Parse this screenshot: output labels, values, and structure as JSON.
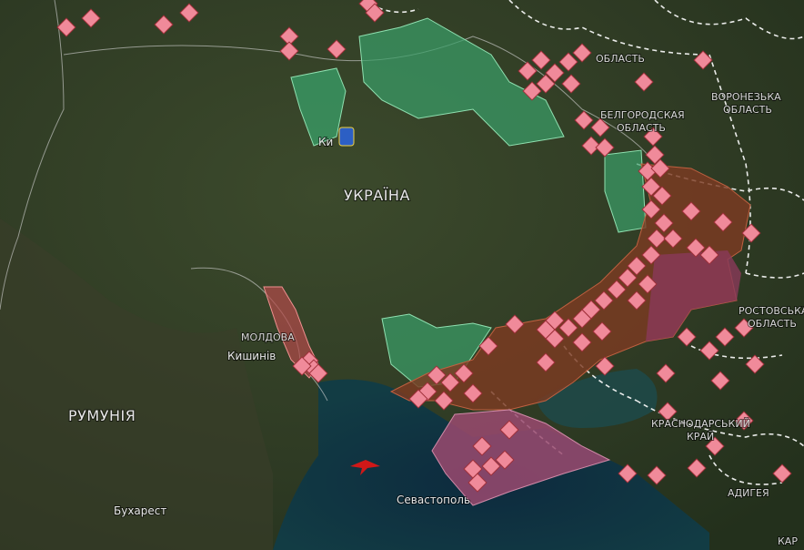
{
  "map": {
    "labels": {
      "ukraine": "УКРАЇНА",
      "kyiv": "Ки",
      "moldova": "МОЛДОВА",
      "chisinau": "Кишинів",
      "romania": "РУМУНІЯ",
      "bucharest": "Бухарест",
      "sevastopol": "Севастополь",
      "kursk": [
        "ОБЛАСТЬ"
      ],
      "belgorod": [
        "БЕЛГОРОДСКАЯ",
        "ОБЛАСТЬ"
      ],
      "voronezh": [
        "ВОРОНЕЗЬКА",
        "ОБЛАСТЬ"
      ],
      "rostov": [
        "РОСТОВСЬКА",
        "ОБЛАСТЬ"
      ],
      "krasnodar": [
        "КРАСНОДАРСЬКИЙ",
        "КРАЙ"
      ],
      "adygea": "АДИГЕЯ",
      "karachay": "КАР"
    }
  }
}
